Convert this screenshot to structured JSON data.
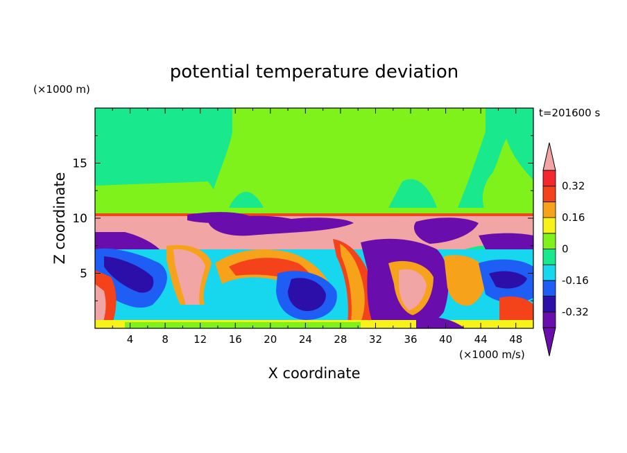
{
  "chart_data": {
    "type": "heatmap",
    "title": "potential temperature deviation",
    "xlabel": "X coordinate",
    "ylabel": "Z coordinate",
    "x_unit": "(×1000 m/s)",
    "y_unit": "(×1000 m)",
    "time_label": "t=201600 s",
    "xlim": [
      0,
      50
    ],
    "ylim": [
      0,
      20
    ],
    "x_ticks": [
      4,
      8,
      12,
      16,
      20,
      24,
      28,
      32,
      36,
      40,
      44,
      48
    ],
    "y_ticks": [
      5,
      10,
      15
    ],
    "colorbar": {
      "levels": [
        -0.4,
        -0.32,
        -0.24,
        -0.16,
        -0.08,
        0,
        0.08,
        0.16,
        0.24,
        0.32,
        0.4
      ],
      "tick_labels": [
        "0.32",
        "0.16",
        "0",
        "-0.16",
        "-0.32"
      ],
      "tick_values": [
        0.32,
        0.16,
        0,
        -0.16,
        -0.32
      ],
      "colors_low_to_high": [
        "#6a0dad",
        "#2c0fa8",
        "#1e5ef5",
        "#17d7ee",
        "#19e88c",
        "#7ff21b",
        "#f7f21a",
        "#f6a21b",
        "#f4421a",
        "#f2282e"
      ],
      "under_color": "#6a0dad",
      "over_color": "#f2a5a5"
    },
    "features": [
      {
        "region": "upper layer z>10.5",
        "value": 0.04
      },
      {
        "region": "interface band z≈9-10.5",
        "value": 0.45
      },
      {
        "region": "cold vortex near x=25, z=3",
        "value": -0.36
      },
      {
        "region": "cold plume near x=38, z=4",
        "value": -0.38
      },
      {
        "region": "warm rising plume near x=12, z=4",
        "value": 0.45
      }
    ]
  }
}
